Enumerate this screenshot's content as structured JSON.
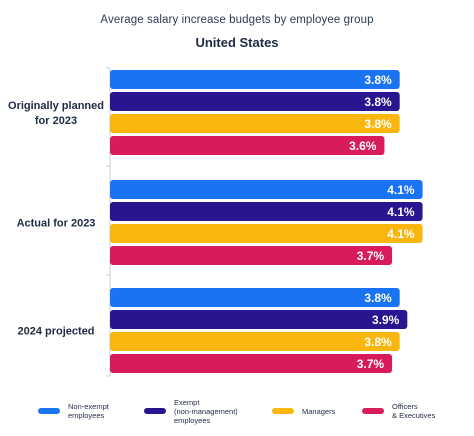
{
  "chart_data": {
    "type": "bar",
    "orientation": "horizontal",
    "title": "Average salary increase budgets by employee group",
    "subtitle": "United States",
    "categories": [
      "Originally planned\nfor 2023",
      "Actual for 2023",
      "2024 projected"
    ],
    "series": [
      {
        "name": "Non-exempt\nemployees",
        "color": "#1a73f0",
        "values": [
          3.8,
          4.1,
          3.8
        ],
        "labels": [
          "3.8%",
          "4.1%",
          "3.8%"
        ]
      },
      {
        "name": "Exempt\n(non-management)\nemployees",
        "color": "#2b148f",
        "values": [
          3.8,
          4.1,
          3.9
        ],
        "labels": [
          "3.8%",
          "4.1%",
          "3.9%"
        ]
      },
      {
        "name": "Managers",
        "color": "#f9b60e",
        "values": [
          3.8,
          4.1,
          3.8
        ],
        "labels": [
          "3.8%",
          "4.1%",
          "3.8%"
        ]
      },
      {
        "name": "Officers\n& Executives",
        "color": "#d81b5a",
        "values": [
          3.6,
          3.7,
          3.7
        ],
        "labels": [
          "3.6%",
          "3.7%",
          "3.7%"
        ]
      }
    ],
    "xlim": [
      0,
      4.25
    ],
    "grid": false,
    "legend_position": "bottom"
  }
}
